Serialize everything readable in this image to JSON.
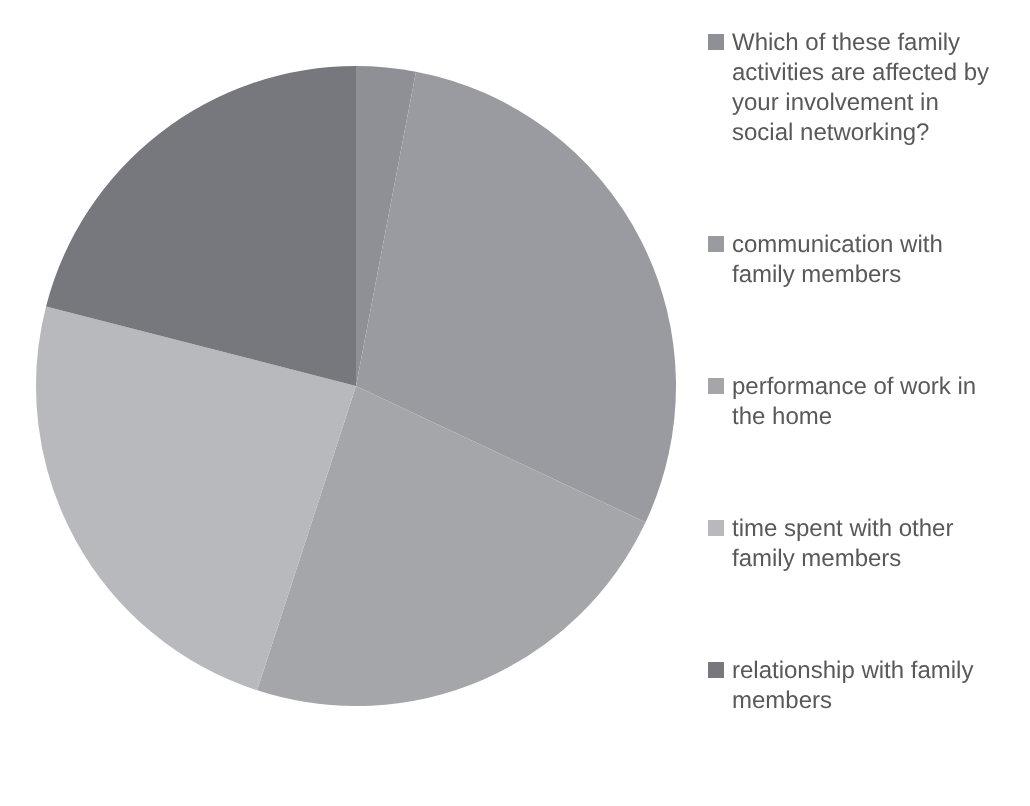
{
  "chart_data": {
    "type": "pie",
    "categories": [
      "Which of these family activities are affected by your involvement in social networking?",
      "communication with family members",
      "performance of work in the home",
      "time spent with other family members",
      "relationship with family members"
    ],
    "values": [
      3,
      29,
      23,
      24,
      21
    ],
    "colors": [
      "#8f9096",
      "#9a9ba0",
      "#a5a6aa",
      "#b8b9bd",
      "#77787d"
    ],
    "legend": "right"
  }
}
